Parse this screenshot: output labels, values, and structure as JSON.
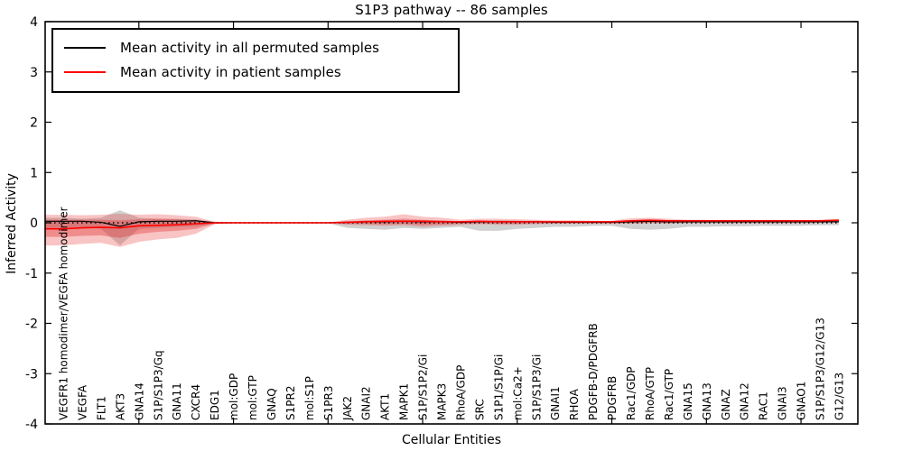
{
  "chart_data": {
    "type": "line",
    "title": "S1P3 pathway -- 86 samples",
    "xlabel": "Cellular Entities",
    "ylabel": "Inferred Activity",
    "ylim": [
      -4,
      4
    ],
    "yticks": [
      4,
      3,
      2,
      1,
      0,
      -1,
      -2,
      -3,
      -4
    ],
    "ytick_labels": [
      "4",
      "3",
      "2",
      "1",
      "0",
      "-1",
      "-2",
      "-3",
      "-4"
    ],
    "xtick_index": [
      4,
      9,
      14,
      19,
      24,
      29,
      34,
      39
    ],
    "grid": false,
    "legend_position": "upper left",
    "zero_line": {
      "style": "dotted",
      "color": "#000000"
    },
    "categories": [
      "VEGFR1 homodimer/VEGFA homodimer",
      "VEGFA",
      "FLT1",
      "AKT3",
      "GNA14",
      "S1P/S1P3/Gq",
      "GNA11",
      "CXCR4",
      "EDG1",
      "mol:GDP",
      "mol:GTP",
      "GNAQ",
      "S1PR2",
      "mol:S1P",
      "S1PR3",
      "JAK2",
      "GNAI2",
      "AKT1",
      "MAPK1",
      "S1P/S1P2/Gi",
      "MAPK3",
      "RhoA/GDP",
      "SRC",
      "S1P1/S1P/Gi",
      "mol:Ca2+",
      "S1P/S1P3/Gi",
      "GNAI1",
      "RHOA",
      "PDGFB-D/PDGFRB",
      "PDGFRB",
      "Rac1/GDP",
      "RhoA/GTP",
      "Rac1/GTP",
      "GNA15",
      "GNA13",
      "GNAZ",
      "GNA12",
      "RAC1",
      "GNAI3",
      "GNAO1",
      "S1P/S1P3/G12/G13",
      "G12/G13"
    ],
    "series": [
      {
        "name": "Mean activity in all permuted samples",
        "color": "#000000",
        "values": [
          0.03,
          0.03,
          0.01,
          -0.07,
          0.02,
          0.03,
          0.03,
          0.04,
          0.0,
          0.0,
          0.0,
          0.0,
          0.0,
          0.0,
          0.0,
          0.01,
          0.02,
          0.02,
          0.03,
          0.02,
          0.02,
          0.01,
          0.02,
          0.02,
          0.02,
          0.02,
          0.01,
          0.01,
          0.01,
          0.01,
          0.02,
          0.03,
          0.02,
          0.02,
          0.02,
          0.02,
          0.02,
          0.02,
          0.02,
          0.02,
          0.02,
          0.02
        ]
      },
      {
        "name": "Mean activity in patient samples",
        "color": "#ff0000",
        "values": [
          -0.12,
          -0.1,
          -0.09,
          -0.1,
          -0.06,
          -0.05,
          -0.04,
          -0.02,
          0.0,
          0.0,
          0.0,
          0.0,
          0.0,
          0.0,
          0.0,
          0.01,
          0.02,
          0.03,
          0.03,
          0.03,
          0.02,
          0.02,
          0.03,
          0.02,
          0.02,
          0.02,
          0.02,
          0.02,
          0.02,
          0.02,
          0.04,
          0.05,
          0.04,
          0.04,
          0.04,
          0.04,
          0.04,
          0.04,
          0.04,
          0.04,
          0.04,
          0.05
        ]
      }
    ],
    "bands": [
      {
        "name": "permuted-confidence-band",
        "color": "rgba(120,120,120,0.35)",
        "upper": [
          0.1,
          0.08,
          0.1,
          0.25,
          0.1,
          0.08,
          0.08,
          0.07,
          0.02,
          0.01,
          0.01,
          0.01,
          0.01,
          0.01,
          0.01,
          0.03,
          0.04,
          0.04,
          0.05,
          0.05,
          0.04,
          0.03,
          0.04,
          0.05,
          0.04,
          0.04,
          0.03,
          0.03,
          0.03,
          0.03,
          0.05,
          0.06,
          0.05,
          0.04,
          0.04,
          0.04,
          0.04,
          0.04,
          0.04,
          0.04,
          0.04,
          0.04
        ],
        "lower": [
          -0.1,
          -0.08,
          -0.12,
          -0.45,
          -0.12,
          -0.1,
          -0.08,
          -0.07,
          -0.02,
          -0.01,
          -0.01,
          -0.01,
          -0.01,
          -0.01,
          -0.01,
          -0.1,
          -0.12,
          -0.14,
          -0.1,
          -0.12,
          -0.1,
          -0.08,
          -0.16,
          -0.16,
          -0.12,
          -0.1,
          -0.08,
          -0.08,
          -0.06,
          -0.06,
          -0.12,
          -0.14,
          -0.12,
          -0.08,
          -0.08,
          -0.07,
          -0.07,
          -0.06,
          -0.06,
          -0.06,
          -0.05,
          -0.05
        ]
      },
      {
        "name": "patient-confidence-band-outer",
        "color": "rgba(235,60,60,0.30)",
        "upper": [
          0.16,
          0.15,
          0.16,
          0.18,
          0.16,
          0.17,
          0.15,
          0.12,
          0.02,
          0.01,
          0.01,
          0.01,
          0.01,
          0.01,
          0.01,
          0.06,
          0.1,
          0.12,
          0.17,
          0.12,
          0.1,
          0.06,
          0.08,
          0.08,
          0.07,
          0.06,
          0.05,
          0.05,
          0.04,
          0.04,
          0.09,
          0.1,
          0.08,
          0.06,
          0.06,
          0.05,
          0.05,
          0.05,
          0.05,
          0.05,
          0.06,
          0.08
        ],
        "lower": [
          -0.45,
          -0.42,
          -0.4,
          -0.48,
          -0.38,
          -0.33,
          -0.3,
          -0.22,
          -0.03,
          -0.01,
          -0.01,
          -0.01,
          -0.01,
          -0.01,
          -0.01,
          -0.04,
          -0.05,
          -0.06,
          -0.05,
          -0.08,
          -0.06,
          -0.04,
          -0.03,
          -0.04,
          -0.04,
          -0.03,
          -0.02,
          -0.02,
          -0.02,
          -0.02,
          -0.02,
          -0.01,
          -0.02,
          -0.01,
          -0.01,
          -0.01,
          -0.01,
          -0.01,
          -0.01,
          -0.01,
          0.0,
          0.02
        ],
        "series": "patient"
      },
      {
        "name": "patient-confidence-band-inner",
        "color": "rgba(220,40,40,0.35)",
        "upper": [
          0.06,
          0.06,
          0.06,
          0.05,
          0.07,
          0.08,
          0.07,
          0.05,
          0.01,
          0.005,
          0.005,
          0.005,
          0.005,
          0.005,
          0.005,
          0.03,
          0.05,
          0.06,
          0.08,
          0.06,
          0.05,
          0.03,
          0.04,
          0.04,
          0.04,
          0.03,
          0.03,
          0.03,
          0.02,
          0.02,
          0.05,
          0.06,
          0.05,
          0.03,
          0.03,
          0.03,
          0.03,
          0.03,
          0.03,
          0.03,
          0.04,
          0.06
        ],
        "lower": [
          -0.28,
          -0.26,
          -0.25,
          -0.3,
          -0.22,
          -0.18,
          -0.16,
          -0.12,
          -0.02,
          -0.005,
          -0.005,
          -0.005,
          -0.005,
          -0.005,
          -0.005,
          -0.02,
          -0.02,
          -0.03,
          -0.02,
          -0.04,
          -0.03,
          -0.02,
          -0.01,
          -0.02,
          -0.02,
          -0.01,
          -0.01,
          -0.01,
          -0.01,
          -0.01,
          0.0,
          0.0,
          0.0,
          0.01,
          0.01,
          0.01,
          0.01,
          0.01,
          0.01,
          0.01,
          0.02,
          0.03
        ],
        "series": "patient"
      }
    ]
  }
}
